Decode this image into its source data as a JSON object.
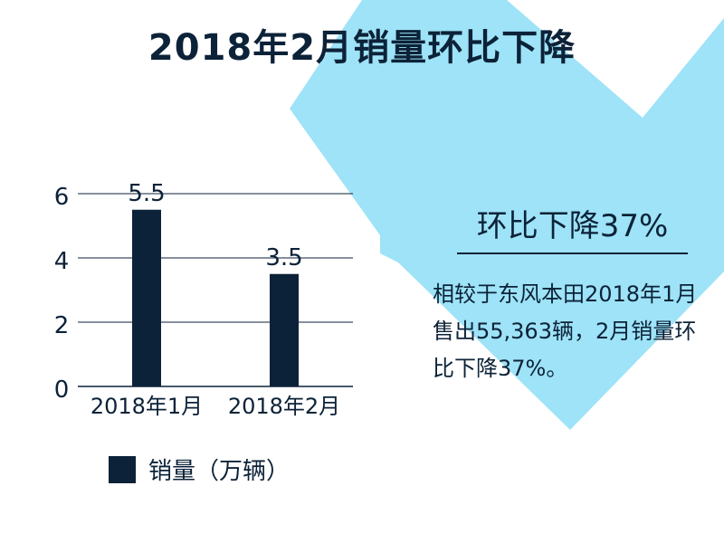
{
  "title": "2018年2月销量环比下降",
  "callout": {
    "heading": "环比下降37%",
    "body": "相较于东风本田2018年1月售出55,363辆，2月销量环比下降37%。"
  },
  "colors": {
    "bar": "#0c2238",
    "text": "#0c2238",
    "arrow": "#9ee3f7",
    "grid": "#0c2238"
  },
  "chart_data": {
    "type": "bar",
    "categories": [
      "2018年1月",
      "2018年2月"
    ],
    "series": [
      {
        "name": "销量（万辆）",
        "values": [
          5.5,
          3.5
        ]
      }
    ],
    "data_labels": [
      "5.5",
      "3.5"
    ],
    "yticks": [
      0,
      2,
      4,
      6
    ],
    "ylim": [
      0,
      6
    ],
    "grid": true,
    "legend": "bottom"
  }
}
